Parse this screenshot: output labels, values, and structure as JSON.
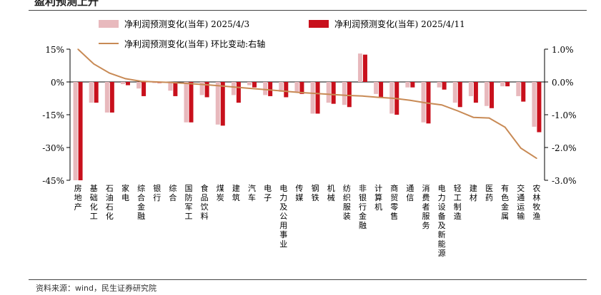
{
  "title": "盈利预测上升",
  "source": "资料来源：wind，民生证券研究院",
  "chart_data": {
    "type": "bar",
    "categories": [
      "房地产",
      "基础化工",
      "石油石化",
      "家电",
      "综合金融",
      "银行",
      "综合",
      "国防军工",
      "食品饮料",
      "煤炭",
      "建筑",
      "汽车",
      "电子",
      "电力及公用事业",
      "传媒",
      "钢铁",
      "机械",
      "纺织服装",
      "非银行金融",
      "计算机",
      "商贸零售",
      "通信",
      "消费者服务",
      "电力设备及新能源",
      "轻工制造",
      "建材",
      "医药",
      "有色金属",
      "交通运输",
      "农林牧渔"
    ],
    "series": [
      {
        "name": "净利润预测变化(当年) 2025/4/3",
        "color": "#e8b9bd",
        "axis": "left",
        "values": [
          -45,
          -9.5,
          -14,
          -1,
          -3,
          -0.5,
          -4,
          -18.5,
          -6,
          -19.5,
          -6,
          -1.5,
          -6,
          -4.5,
          -4.5,
          -14.5,
          -9.5,
          -10.5,
          13,
          -5.5,
          -14.5,
          -2.5,
          -18.5,
          -2.5,
          -9.5,
          -6.5,
          -11,
          -2,
          -6.5,
          -20.5
        ]
      },
      {
        "name": "净利润预测变化(当年) 2025/4/11",
        "color": "#c8101c",
        "axis": "left",
        "values": [
          -45,
          -9.5,
          -14,
          -1.5,
          -6.5,
          -0.5,
          -6.5,
          -18.5,
          -7,
          -20,
          -9.5,
          -2.5,
          -6.5,
          -7,
          -5.5,
          -14.5,
          -10,
          -11.5,
          12.5,
          -7,
          -15,
          -2.5,
          -19,
          -3.5,
          -11.5,
          -9.5,
          -12,
          -2,
          -9,
          -23
        ]
      },
      {
        "name": "净利润预测变化(当年) 环比变动:右轴",
        "color": "#c88a55",
        "axis": "right",
        "type": "line",
        "values": [
          1.0,
          0.55,
          0.27,
          0.1,
          0.02,
          0.0,
          -0.02,
          -0.05,
          -0.08,
          -0.12,
          -0.16,
          -0.2,
          -0.24,
          -0.28,
          -0.32,
          -0.35,
          -0.38,
          -0.41,
          -0.43,
          -0.47,
          -0.5,
          -0.56,
          -0.64,
          -0.7,
          -0.88,
          -1.08,
          -1.1,
          -1.38,
          -2.02,
          -2.33
        ]
      }
    ],
    "y_left": {
      "ticks": [
        15,
        0,
        -15,
        -30,
        -45
      ],
      "tick_labels": [
        "15%",
        "0%",
        "-15%",
        "-30%",
        "-45%"
      ],
      "ylim": [
        -45,
        15
      ]
    },
    "y_right": {
      "ticks": [
        1.0,
        0.0,
        -1.0,
        -2.0,
        -3.0
      ],
      "tick_labels": [
        "1.0%",
        "0.0%",
        "-1.0%",
        "-2.0%",
        "-3.0%"
      ],
      "ylim": [
        -3.0,
        1.0
      ]
    },
    "legend_position": "top",
    "grid": false
  }
}
